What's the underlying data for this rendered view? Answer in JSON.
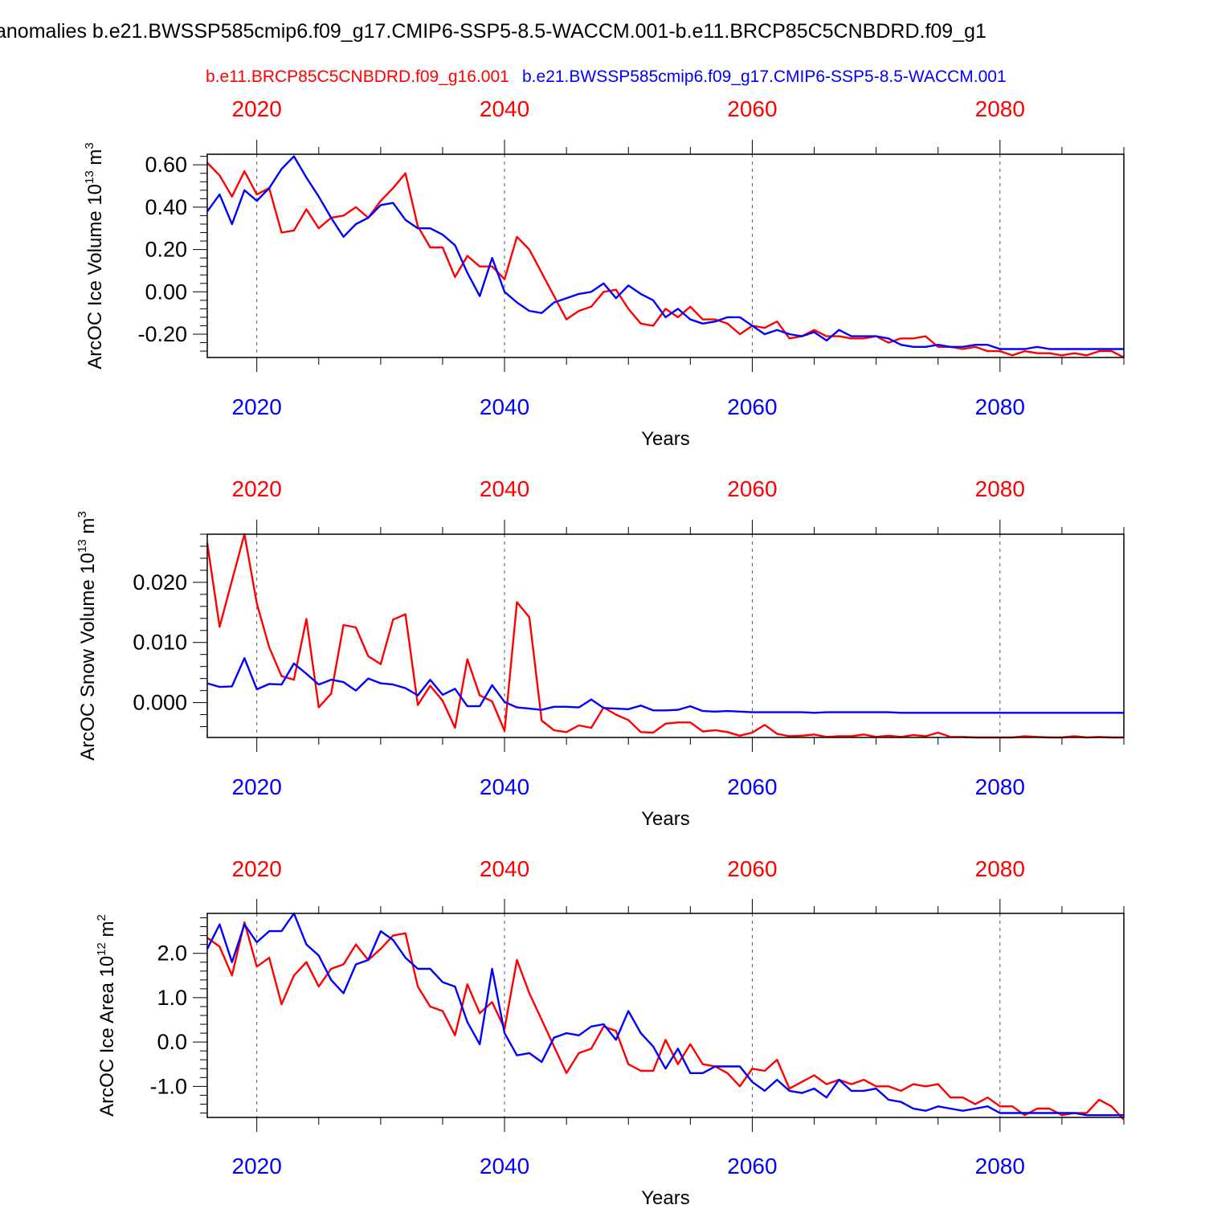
{
  "figure": {
    "title": "anomalies b.e21.BWSSP585cmip6.f09_g17.CMIP6-SSP5-8.5-WACCM.001-b.e11.BRCP85C5CNBDRD.f09_g1",
    "legend_red": "b.e11.BRCP85C5CNBDRD.f09_g16.001",
    "legend_blue": "b.e21.BWSSP585cmip6.f09_g17.CMIP6-SSP5-8.5-WACCM.001",
    "colors": {
      "red": "#ff0000",
      "blue": "#0000ff"
    }
  },
  "chart_data": [
    {
      "type": "line",
      "xlabel": "Years",
      "ylabel": "ArcOC Ice Volume 10",
      "ylabel_exp": "13",
      "ylabel_unit": " m",
      "ylabel_unit_exp": "3",
      "xlim": [
        2016,
        2090
      ],
      "ylim": [
        -0.31,
        0.65
      ],
      "yticks": [
        -0.2,
        0.0,
        0.2,
        0.4,
        0.6
      ],
      "ytick_labels": [
        "-0.20",
        "0.00",
        "0.20",
        "0.40",
        "0.60"
      ],
      "xticks": [
        2020,
        2040,
        2060,
        2080
      ],
      "xtick_labels": [
        "2020",
        "2040",
        "2060",
        "2080"
      ],
      "grid": "vertical dashed at major x ticks",
      "series": [
        {
          "name": "b.e11.BRCP85C5CNBDRD.f09_g16.001",
          "color": "#ff0000",
          "x_start": 2016,
          "values": [
            0.61,
            0.55,
            0.45,
            0.57,
            0.46,
            0.49,
            0.28,
            0.29,
            0.39,
            0.3,
            0.35,
            0.36,
            0.4,
            0.35,
            0.43,
            0.49,
            0.56,
            0.31,
            0.21,
            0.21,
            0.07,
            0.17,
            0.12,
            0.12,
            0.06,
            0.26,
            0.2,
            0.09,
            -0.02,
            -0.13,
            -0.09,
            -0.07,
            0.0,
            0.01,
            -0.08,
            -0.15,
            -0.16,
            -0.08,
            -0.12,
            -0.07,
            -0.13,
            -0.13,
            -0.15,
            -0.2,
            -0.16,
            -0.17,
            -0.14,
            -0.22,
            -0.21,
            -0.18,
            -0.21,
            -0.21,
            -0.22,
            -0.22,
            -0.21,
            -0.24,
            -0.22,
            -0.22,
            -0.21,
            -0.26,
            -0.26,
            -0.27,
            -0.26,
            -0.28,
            -0.28,
            -0.3,
            -0.28,
            -0.29,
            -0.29,
            -0.3,
            -0.29,
            -0.3,
            -0.28,
            -0.28,
            -0.31
          ]
        },
        {
          "name": "b.e21.BWSSP585cmip6.f09_g17.CMIP6-SSP5-8.5-WACCM.001",
          "color": "#0000ff",
          "x_start": 2016,
          "values": [
            0.38,
            0.46,
            0.32,
            0.48,
            0.43,
            0.49,
            0.58,
            0.64,
            0.54,
            0.45,
            0.35,
            0.26,
            0.32,
            0.35,
            0.41,
            0.42,
            0.34,
            0.3,
            0.3,
            0.27,
            0.22,
            0.09,
            -0.02,
            0.16,
            0.0,
            -0.05,
            -0.09,
            -0.1,
            -0.05,
            -0.03,
            -0.01,
            0.0,
            0.04,
            -0.03,
            0.03,
            -0.01,
            -0.04,
            -0.12,
            -0.08,
            -0.13,
            -0.15,
            -0.14,
            -0.12,
            -0.12,
            -0.16,
            -0.2,
            -0.18,
            -0.2,
            -0.21,
            -0.19,
            -0.23,
            -0.18,
            -0.21,
            -0.21,
            -0.21,
            -0.22,
            -0.25,
            -0.26,
            -0.26,
            -0.25,
            -0.26,
            -0.26,
            -0.25,
            -0.25,
            -0.27,
            -0.27,
            -0.27,
            -0.26,
            -0.27,
            -0.27,
            -0.27,
            -0.27,
            -0.27,
            -0.27,
            -0.27
          ]
        }
      ]
    },
    {
      "type": "line",
      "xlabel": "Years",
      "ylabel": "ArcOC Snow Volume 10",
      "ylabel_exp": "13",
      "ylabel_unit": " m",
      "ylabel_unit_exp": "3",
      "xlim": [
        2016,
        2090
      ],
      "ylim": [
        -0.0058,
        0.028
      ],
      "yticks": [
        0.0,
        0.01,
        0.02
      ],
      "ytick_labels": [
        "0.000",
        "0.010",
        "0.020"
      ],
      "xticks": [
        2020,
        2040,
        2060,
        2080
      ],
      "xtick_labels": [
        "2020",
        "2040",
        "2060",
        "2080"
      ],
      "grid": "vertical dashed at major x ticks",
      "series": [
        {
          "name": "b.e11.BRCP85C5CNBDRD.f09_g16.001",
          "color": "#ff0000",
          "x_start": 2016,
          "values": [
            0.0265,
            0.0126,
            0.0203,
            0.028,
            0.0165,
            0.0092,
            0.0044,
            0.0038,
            0.0139,
            -0.0008,
            0.0015,
            0.0129,
            0.0125,
            0.0077,
            0.0064,
            0.0138,
            0.0147,
            -0.0004,
            0.0028,
            0.0003,
            -0.0042,
            0.0072,
            0.0012,
            0.0002,
            -0.0047,
            0.0167,
            0.0142,
            -0.003,
            -0.0046,
            -0.0049,
            -0.0038,
            -0.0042,
            -0.0008,
            -0.002,
            -0.0029,
            -0.0049,
            -0.005,
            -0.0035,
            -0.0033,
            -0.0033,
            -0.0048,
            -0.0046,
            -0.0049,
            -0.0055,
            -0.005,
            -0.0037,
            -0.0052,
            -0.0056,
            -0.0055,
            -0.0053,
            -0.0057,
            -0.0056,
            -0.0056,
            -0.0053,
            -0.0057,
            -0.0055,
            -0.0057,
            -0.0054,
            -0.0056,
            -0.005,
            -0.0057,
            -0.0057,
            -0.0058,
            -0.0058,
            -0.0058,
            -0.0058,
            -0.0056,
            -0.0057,
            -0.0058,
            -0.0058,
            -0.0056,
            -0.0058,
            -0.0057,
            -0.0058,
            -0.0058
          ]
        },
        {
          "name": "b.e21.BWSSP585cmip6.f09_g17.CMIP6-SSP5-8.5-WACCM.001",
          "color": "#0000ff",
          "x_start": 2016,
          "values": [
            0.0032,
            0.0026,
            0.0027,
            0.0074,
            0.0022,
            0.0031,
            0.003,
            0.0065,
            0.0048,
            0.003,
            0.0038,
            0.0034,
            0.002,
            0.004,
            0.0032,
            0.003,
            0.0024,
            0.0012,
            0.0038,
            0.0013,
            0.0023,
            -0.0006,
            -0.0006,
            0.0029,
            0.0001,
            -0.0008,
            -0.001,
            -0.0012,
            -0.0007,
            -0.0007,
            -0.0008,
            0.0005,
            -0.0009,
            -0.001,
            -0.0011,
            -0.0005,
            -0.0013,
            -0.0013,
            -0.0012,
            -0.0006,
            -0.0014,
            -0.0015,
            -0.0014,
            -0.0015,
            -0.0016,
            -0.0016,
            -0.0016,
            -0.0016,
            -0.0016,
            -0.0017,
            -0.0016,
            -0.0016,
            -0.0016,
            -0.0016,
            -0.0016,
            -0.0016,
            -0.0017,
            -0.0017,
            -0.0017,
            -0.0017,
            -0.0017,
            -0.0017,
            -0.0017,
            -0.0017,
            -0.0017,
            -0.0017,
            -0.0017,
            -0.0017,
            -0.0017,
            -0.0017,
            -0.0017,
            -0.0017,
            -0.0017,
            -0.0017,
            -0.0017
          ]
        }
      ]
    },
    {
      "type": "line",
      "xlabel": "Years",
      "ylabel": "ArcOC Ice Area 10",
      "ylabel_exp": "12",
      "ylabel_unit": " m",
      "ylabel_unit_exp": "2",
      "xlim": [
        2016,
        2090
      ],
      "ylim": [
        -1.7,
        2.9
      ],
      "yticks": [
        -1.0,
        0.0,
        1.0,
        2.0
      ],
      "ytick_labels": [
        "-1.0",
        "0.0",
        "1.0",
        "2.0"
      ],
      "xticks": [
        2020,
        2040,
        2060,
        2080
      ],
      "xtick_labels": [
        "2020",
        "2040",
        "2060",
        "2080"
      ],
      "grid": "vertical dashed at major x ticks",
      "series": [
        {
          "name": "b.e11.BRCP85C5CNBDRD.f09_g16.001",
          "color": "#ff0000",
          "x_start": 2016,
          "values": [
            2.35,
            2.15,
            1.5,
            2.7,
            1.7,
            1.9,
            0.85,
            1.5,
            1.8,
            1.25,
            1.65,
            1.75,
            2.2,
            1.85,
            2.1,
            2.4,
            2.45,
            1.25,
            0.8,
            0.7,
            0.15,
            1.3,
            0.65,
            0.9,
            0.3,
            1.85,
            1.1,
            0.5,
            -0.1,
            -0.7,
            -0.25,
            -0.15,
            0.35,
            0.25,
            -0.5,
            -0.65,
            -0.65,
            0.05,
            -0.5,
            -0.05,
            -0.5,
            -0.55,
            -0.7,
            -1.0,
            -0.6,
            -0.65,
            -0.4,
            -1.05,
            -0.9,
            -0.75,
            -0.95,
            -0.85,
            -0.95,
            -0.85,
            -1.0,
            -1.0,
            -1.1,
            -0.95,
            -1.0,
            -0.95,
            -1.25,
            -1.25,
            -1.4,
            -1.25,
            -1.45,
            -1.45,
            -1.65,
            -1.5,
            -1.5,
            -1.65,
            -1.6,
            -1.6,
            -1.3,
            -1.45,
            -1.75
          ]
        },
        {
          "name": "b.e21.BWSSP585cmip6.f09_g17.CMIP6-SSP5-8.5-WACCM.001",
          "color": "#0000ff",
          "x_start": 2016,
          "values": [
            2.1,
            2.65,
            1.8,
            2.65,
            2.25,
            2.5,
            2.5,
            2.9,
            2.2,
            1.95,
            1.4,
            1.1,
            1.75,
            1.85,
            2.5,
            2.3,
            1.9,
            1.65,
            1.65,
            1.35,
            1.25,
            0.45,
            -0.05,
            1.65,
            0.2,
            -0.3,
            -0.25,
            -0.45,
            0.1,
            0.2,
            0.15,
            0.35,
            0.4,
            0.05,
            0.7,
            0.2,
            -0.1,
            -0.6,
            -0.15,
            -0.7,
            -0.7,
            -0.55,
            -0.55,
            -0.55,
            -0.9,
            -1.1,
            -0.85,
            -1.1,
            -1.15,
            -1.05,
            -1.25,
            -0.85,
            -1.1,
            -1.1,
            -1.05,
            -1.3,
            -1.35,
            -1.5,
            -1.55,
            -1.45,
            -1.5,
            -1.55,
            -1.5,
            -1.45,
            -1.6,
            -1.6,
            -1.6,
            -1.6,
            -1.6,
            -1.6,
            -1.6,
            -1.65,
            -1.65,
            -1.65,
            -1.65
          ]
        }
      ]
    }
  ]
}
